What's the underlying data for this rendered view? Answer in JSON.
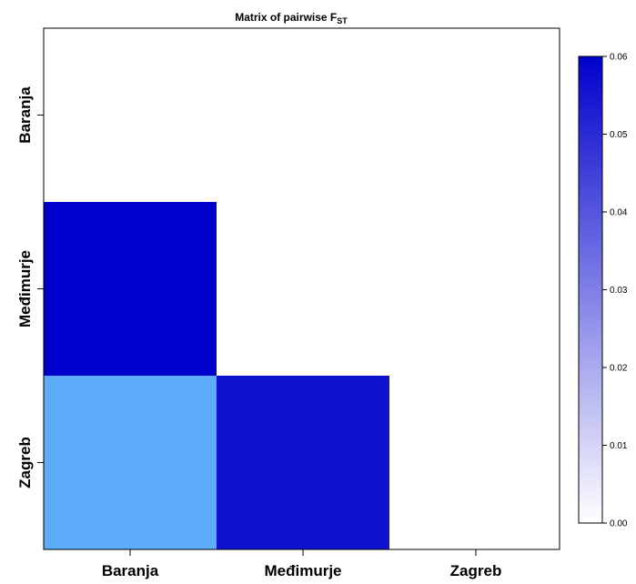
{
  "chart_data": {
    "type": "heatmap",
    "title": "Matrix of pairwise F",
    "title_subscript": "ST",
    "x_categories": [
      "Baranja",
      "Međimurje",
      "Zagreb"
    ],
    "y_categories": [
      "Baranja",
      "Međimurje",
      "Zagreb"
    ],
    "cells": [
      {
        "row": "Međimurje",
        "col": "Baranja",
        "value": 0.06,
        "color": "#0000CD"
      },
      {
        "row": "Zagreb",
        "col": "Baranja",
        "value": 0.025,
        "color": "#5CACFA"
      },
      {
        "row": "Zagreb",
        "col": "Međimurje",
        "value": 0.058,
        "color": "#0F12CE"
      }
    ],
    "colorbar": {
      "min": 0,
      "max": 0.06,
      "ticks": [
        "0.00",
        "0.01",
        "0.02",
        "0.03",
        "0.04",
        "0.05",
        "0.06"
      ],
      "color_low": "#FFFFFF",
      "color_high": "#0000CD"
    },
    "grid": false,
    "legend": "right"
  }
}
